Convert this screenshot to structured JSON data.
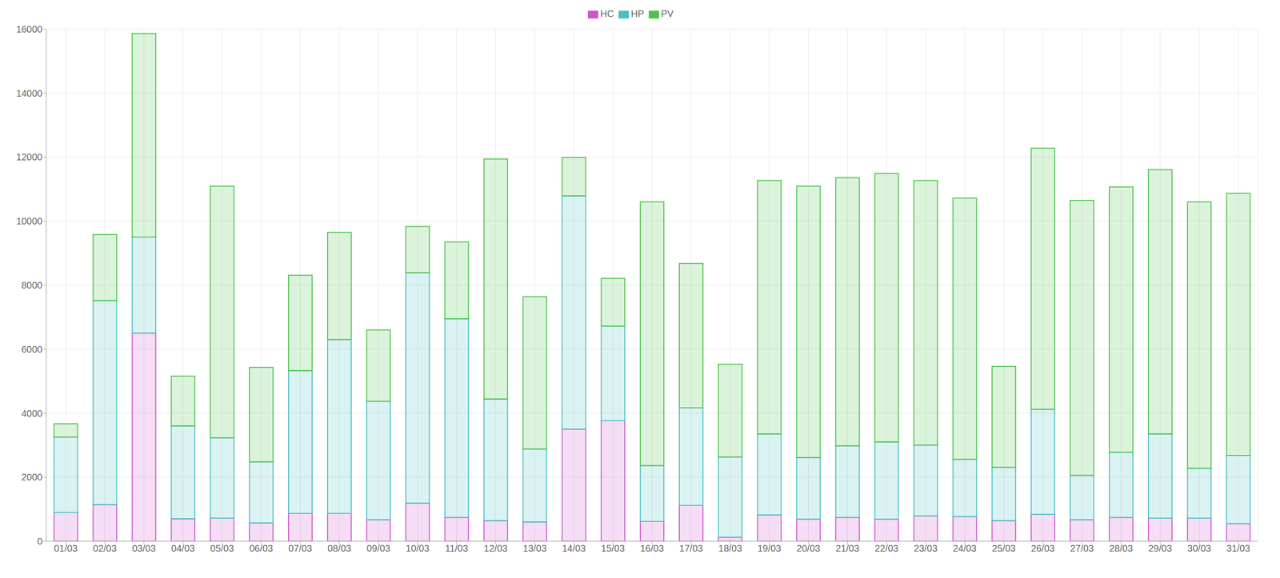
{
  "chart_data": {
    "type": "bar",
    "stacked": true,
    "grid": true,
    "legend": "top",
    "categories": [
      "01/03",
      "02/03",
      "03/03",
      "04/03",
      "05/03",
      "06/03",
      "07/03",
      "08/03",
      "09/03",
      "10/03",
      "11/03",
      "12/03",
      "13/03",
      "14/03",
      "15/03",
      "16/03",
      "17/03",
      "18/03",
      "19/03",
      "20/03",
      "21/03",
      "22/03",
      "23/03",
      "24/03",
      "25/03",
      "26/03",
      "27/03",
      "28/03",
      "29/03",
      "30/03",
      "31/03"
    ],
    "series": [
      {
        "name": "HC",
        "color": "#cc55cc",
        "values": [
          900,
          1140,
          6500,
          700,
          720,
          570,
          870,
          870,
          670,
          1190,
          740,
          640,
          600,
          3500,
          3770,
          620,
          1120,
          120,
          820,
          690,
          740,
          690,
          790,
          770,
          640,
          840,
          670,
          740,
          720,
          720,
          550
        ]
      },
      {
        "name": "HP",
        "color": "#4bc0c0",
        "values": [
          2350,
          6380,
          3000,
          2900,
          2510,
          1910,
          4460,
          5430,
          3700,
          7200,
          6210,
          3800,
          2280,
          7290,
          2950,
          1740,
          3050,
          2510,
          2530,
          1920,
          2240,
          2410,
          2210,
          1790,
          1670,
          3280,
          1390,
          2040,
          2630,
          1560,
          2130
        ]
      },
      {
        "name": "PV",
        "color": "#4cc24c",
        "values": [
          420,
          2060,
          6360,
          1560,
          7860,
          2950,
          2980,
          3350,
          2230,
          1440,
          2400,
          7500,
          4760,
          1200,
          1490,
          8240,
          4510,
          2900,
          7920,
          8480,
          8380,
          8390,
          8270,
          8160,
          3150,
          8160,
          8590,
          8290,
          8260,
          8320,
          8190
        ]
      }
    ],
    "ylim": [
      0,
      16000
    ],
    "yticks": [
      0,
      2000,
      4000,
      6000,
      8000,
      10000,
      12000,
      14000,
      16000
    ]
  }
}
